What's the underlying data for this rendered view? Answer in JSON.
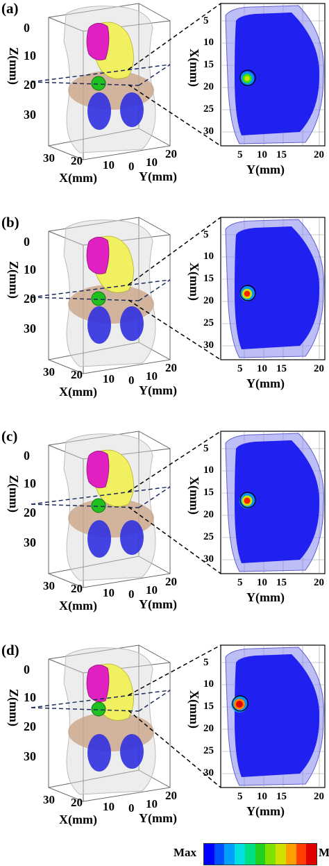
{
  "figure": {
    "panels": [
      {
        "label": "(a)",
        "hot_level": 0.55,
        "z_axis": {
          "title": "Z(mm)",
          "ticks": [
            "0",
            "10",
            "20",
            "30"
          ]
        },
        "x3d_axis": {
          "title": "X(mm)",
          "ticks": [
            "30",
            "20",
            "10",
            "0"
          ]
        },
        "y3d_axis": {
          "title": "Y(mm)",
          "ticks": [
            "10",
            "20"
          ]
        },
        "slice_x_axis": {
          "title": "X(mm)",
          "ticks": [
            "5",
            "10",
            "15",
            "20",
            "25",
            "30"
          ]
        },
        "slice_y_axis": {
          "title": "Y(mm)",
          "ticks": [
            "5",
            "10",
            "15",
            "20"
          ]
        }
      },
      {
        "label": "(b)",
        "hot_level": 0.75,
        "z_axis": {
          "title": "Z(mm)",
          "ticks": [
            "0",
            "10",
            "20",
            "30"
          ]
        },
        "x3d_axis": {
          "title": "X(mm)",
          "ticks": [
            "30",
            "20",
            "10",
            "0"
          ]
        },
        "y3d_axis": {
          "title": "Y(mm)",
          "ticks": [
            "10",
            "20"
          ]
        },
        "slice_x_axis": {
          "title": "X(mm)",
          "ticks": [
            "5",
            "10",
            "15",
            "20",
            "25",
            "30"
          ]
        },
        "slice_y_axis": {
          "title": "Y(mm)",
          "ticks": [
            "5",
            "10",
            "15",
            "20"
          ]
        }
      },
      {
        "label": "(c)",
        "hot_level": 0.85,
        "z_axis": {
          "title": "Z(mm)",
          "ticks": [
            "0",
            "10",
            "20",
            "30"
          ]
        },
        "x3d_axis": {
          "title": "X(mm)",
          "ticks": [
            "30",
            "20",
            "10",
            "0"
          ]
        },
        "y3d_axis": {
          "title": "Y(mm)",
          "ticks": [
            "10",
            "20"
          ]
        },
        "slice_x_axis": {
          "title": "X(mm)",
          "ticks": [
            "5",
            "10",
            "15",
            "20",
            "25",
            "30"
          ]
        },
        "slice_y_axis": {
          "title": "Y(mm)",
          "ticks": [
            "5",
            "10",
            "15",
            "20"
          ]
        }
      },
      {
        "label": "(d)",
        "hot_level": 1.0,
        "z_axis": {
          "title": "Z(mm)",
          "ticks": [
            "0",
            "10",
            "20",
            "30"
          ]
        },
        "x3d_axis": {
          "title": "X(mm)",
          "ticks": [
            "30",
            "20",
            "10",
            "0"
          ]
        },
        "y3d_axis": {
          "title": "Y(mm)",
          "ticks": [
            "10",
            "20"
          ]
        },
        "slice_x_axis": {
          "title": "X(mm)",
          "ticks": [
            "5",
            "10",
            "15",
            "20",
            "25",
            "30"
          ]
        },
        "slice_y_axis": {
          "title": "Y(mm)",
          "ticks": [
            "5",
            "10",
            "15",
            "20"
          ]
        }
      }
    ],
    "colorbar": {
      "max_label": "Max",
      "min_label": "Min",
      "colors": [
        "#0000ff",
        "#0050ff",
        "#00a0ff",
        "#00e0e0",
        "#00e080",
        "#20d020",
        "#80e000",
        "#d0e000",
        "#ffa000",
        "#ff4000",
        "#e00000"
      ]
    },
    "colors": {
      "field_blue": "#2020f0",
      "liver": "#f0f060",
      "heart": "#e020c0",
      "tissue": "#c8a080",
      "kidney": "#3030e0",
      "tumor": "#20c020"
    }
  }
}
